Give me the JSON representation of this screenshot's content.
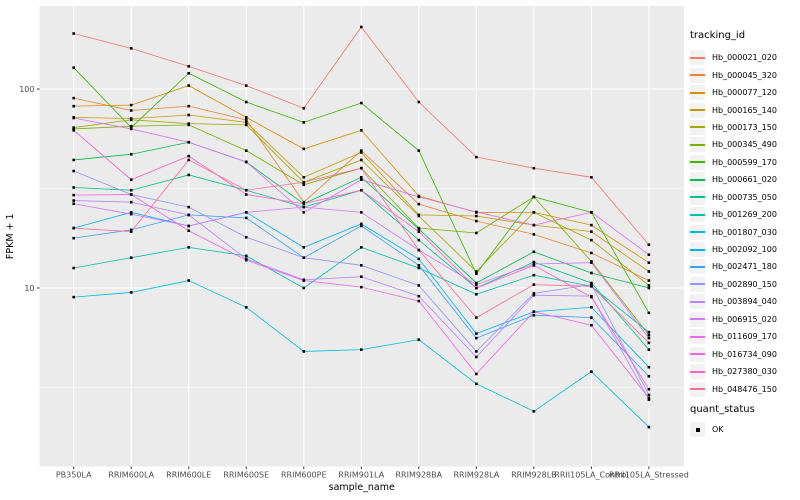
{
  "figure": {
    "background": "#FFFFFF",
    "panel_background": "#EBEBEB",
    "grid_color": "#FFFFFF",
    "tick_label_color": "#4D4D4D",
    "axis_title_color": "#000000",
    "marker_color": "#000000"
  },
  "chart_data": {
    "type": "line",
    "title": "",
    "xlabel": "sample_name",
    "ylabel": "FPKM + 1",
    "y_scale": "log10",
    "ylim": [
      1.26,
      261
    ],
    "y_ticks": [
      10,
      100
    ],
    "y_minor_ticks": [
      3.162,
      31.62
    ],
    "grid": true,
    "marker": "square",
    "legend_position": "right",
    "legend_title": "tracking_id",
    "legend2_title": "quant_status",
    "legend2_items": [
      {
        "label": "OK"
      }
    ],
    "categories": [
      "PB350LA",
      "RRIM600LA",
      "RRIM600LE",
      "RRIM600SE",
      "RRIM600PE",
      "RRIM901LA",
      "RRIM928BA",
      "RRIM928LA",
      "RRIM928LB",
      "RRII105LA_Control",
      "RRII105LA_Stressed"
    ],
    "series": [
      {
        "name": "Hb_000021_020",
        "color": "#F8766D",
        "values": [
          190,
          160,
          130,
          104,
          80,
          205,
          86,
          45.5,
          40,
          36,
          16.5
        ]
      },
      {
        "name": "Hb_000045_320",
        "color": "#EA8331",
        "values": [
          90,
          78,
          82,
          70,
          27,
          49,
          26.4,
          21.7,
          18.6,
          15,
          10.9
        ]
      },
      {
        "name": "Hb_000077_120",
        "color": "#D89000",
        "values": [
          82,
          83,
          104,
          72,
          50,
          62,
          29,
          24,
          24,
          20.7,
          13.4
        ]
      },
      {
        "name": "Hb_000165_140",
        "color": "#C09B00",
        "values": [
          72,
          71,
          74,
          68,
          36,
          48,
          23.3,
          23,
          20.7,
          19.2,
          12.1
        ]
      },
      {
        "name": "Hb_000173_150",
        "color": "#A3A500",
        "values": [
          64,
          70,
          67,
          66,
          34,
          44,
          23,
          12.1,
          24,
          17.4,
          10.3
        ]
      },
      {
        "name": "Hb_000345_490",
        "color": "#7CAE00",
        "values": [
          63,
          65,
          66,
          49,
          33,
          40,
          20,
          18.9,
          28.7,
          13.6,
          5.8
        ]
      },
      {
        "name": "Hb_000599_170",
        "color": "#39B600",
        "values": [
          128,
          64,
          120,
          86,
          68,
          85,
          49,
          11.8,
          28.7,
          24,
          7.5
        ]
      },
      {
        "name": "Hb_000661_020",
        "color": "#00BB4E",
        "values": [
          44,
          47,
          54,
          43,
          26.5,
          36,
          19.8,
          10.6,
          15.2,
          11.9,
          10
        ]
      },
      {
        "name": "Hb_000735_050",
        "color": "#00C087",
        "values": [
          32,
          31,
          37,
          31,
          25.5,
          31,
          17.4,
          10,
          13.5,
          10.6,
          4.9
        ]
      },
      {
        "name": "Hb_001269_200",
        "color": "#00C0B2",
        "values": [
          12.6,
          14.2,
          16,
          14.5,
          10,
          16,
          12.6,
          9.3,
          11.6,
          10.2,
          6
        ]
      },
      {
        "name": "Hb_001807_030",
        "color": "#00BCD8",
        "values": [
          9,
          9.5,
          10.9,
          8,
          4.8,
          4.9,
          5.5,
          3.3,
          2.4,
          3.8,
          2
        ]
      },
      {
        "name": "Hb_002092_100",
        "color": "#00B0F6",
        "values": [
          20,
          24,
          20.5,
          24,
          16,
          21,
          14,
          5.9,
          7.6,
          8,
          4
        ]
      },
      {
        "name": "Hb_002471_180",
        "color": "#35A2FF",
        "values": [
          17.8,
          19.6,
          23.3,
          22.5,
          14.2,
          20.5,
          13,
          5.6,
          7.3,
          7.1,
          3.6
        ]
      },
      {
        "name": "Hb_002890_150",
        "color": "#9590FF",
        "values": [
          38.7,
          29.5,
          25.5,
          18,
          14.2,
          13,
          10.3,
          4.8,
          9.4,
          10.4,
          2.9
        ]
      },
      {
        "name": "Hb_003894_040",
        "color": "#B983FF",
        "values": [
          27.5,
          27,
          23.3,
          14,
          11,
          11.4,
          9.1,
          4.5,
          9.2,
          9.1,
          2.75
        ]
      },
      {
        "name": "Hb_006915_020",
        "color": "#D376FF",
        "values": [
          26.5,
          23.5,
          20.5,
          24,
          25.5,
          24,
          15.5,
          10.4,
          13.2,
          13.4,
          5.6
        ]
      },
      {
        "name": "Hb_011609_170",
        "color": "#E76BF3",
        "values": [
          71.5,
          63,
          54,
          43,
          24,
          35,
          28.7,
          24.1,
          20.7,
          24,
          14.7
        ]
      },
      {
        "name": "Hb_016734_090",
        "color": "#F564E3",
        "values": [
          29.3,
          29.5,
          19.4,
          13.8,
          10.9,
          10.1,
          8.6,
          3.7,
          7.6,
          6.5,
          2.8
        ]
      },
      {
        "name": "Hb_027380_030",
        "color": "#FF61C7",
        "values": [
          62,
          35,
          46,
          29.5,
          26.5,
          31,
          19.2,
          10,
          13,
          9,
          3.1
        ]
      },
      {
        "name": "Hb_048476_150",
        "color": "#FF6A98",
        "values": [
          20,
          19.2,
          44,
          31,
          34,
          40,
          15.5,
          7.1,
          10.4,
          10.2,
          5.3
        ]
      }
    ]
  }
}
